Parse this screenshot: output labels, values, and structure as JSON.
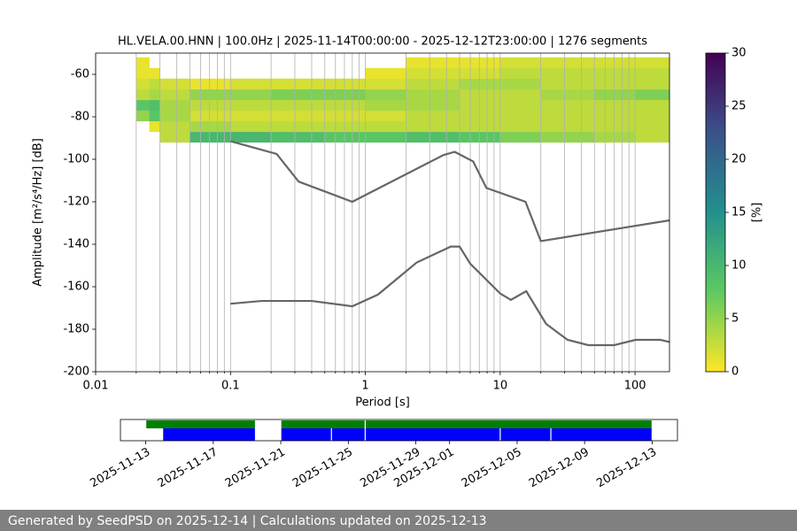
{
  "chart_data": [
    {
      "type": "heatmap",
      "title": "HL.VELA.00.HNN | 100.0Hz | 2025-11-14T00:00:00 - 2025-12-12T23:00:00 | 1276 segments",
      "xlabel": "Period [s]",
      "ylabel": "Amplitude [m²/s⁴/Hz] [dB]",
      "log_x": true,
      "xlim": [
        0.01,
        180
      ],
      "xticks": [
        0.01,
        0.1,
        1,
        10,
        100
      ],
      "xminorticks": [
        0.02,
        0.03,
        0.04,
        0.05,
        0.06,
        0.07,
        0.08,
        0.09,
        0.2,
        0.3,
        0.4,
        0.5,
        0.6,
        0.7,
        0.8,
        0.9,
        2,
        3,
        4,
        5,
        6,
        7,
        8,
        9,
        20,
        30,
        40,
        50,
        60,
        70,
        80,
        90
      ],
      "ylim": [
        -200,
        -50
      ],
      "yticks": [
        -200,
        -180,
        -160,
        -140,
        -120,
        -100,
        -80,
        -60
      ],
      "grid": "x",
      "heatmap": {
        "x_bins": [
          0.02,
          0.025,
          0.03,
          0.05,
          0.1,
          0.2,
          0.5,
          1,
          2,
          5,
          10,
          20,
          50,
          100,
          180
        ],
        "y_bins": [
          -92,
          -87,
          -82,
          -77,
          -72,
          -67,
          -62,
          -57,
          -52
        ],
        "values": [
          [
            null,
            null,
            3,
            10,
            10,
            9,
            8,
            8,
            9,
            8,
            6,
            5,
            4,
            3
          ],
          [
            null,
            1,
            3,
            4,
            3,
            3,
            3,
            3,
            3,
            3,
            3,
            3,
            3,
            3
          ],
          [
            5,
            8,
            4,
            2,
            2,
            2,
            2,
            2,
            3,
            3,
            3,
            3,
            3,
            3
          ],
          [
            8,
            9,
            4,
            3,
            3,
            3,
            3,
            4,
            4,
            3,
            3,
            3,
            3,
            3
          ],
          [
            3,
            4,
            3,
            5,
            5,
            6,
            6,
            5,
            4,
            3,
            3,
            4,
            5,
            6
          ],
          [
            2,
            3,
            2,
            1,
            2,
            2,
            2,
            2,
            3,
            4,
            4,
            3,
            3,
            3
          ],
          [
            1,
            1,
            null,
            null,
            null,
            null,
            null,
            1,
            2,
            2,
            3,
            3,
            3,
            3
          ],
          [
            1,
            null,
            null,
            null,
            null,
            null,
            null,
            null,
            1,
            1,
            2,
            2,
            2,
            2
          ]
        ]
      },
      "colormap": "viridis_r",
      "zlim": [
        0,
        30
      ],
      "zticks": [
        0,
        5,
        10,
        15,
        20,
        25,
        30
      ],
      "zlabel": "[%]",
      "series": [
        {
          "color": "#666666",
          "x": [
            0.1,
            0.22,
            0.32,
            0.8,
            3.8,
            4.6,
            6.3,
            7.9,
            15.4,
            20,
            180
          ],
          "values": [
            -91.5,
            -97.5,
            -110.5,
            -120,
            -98,
            -96.5,
            -101,
            -113.5,
            -120,
            -138.5,
            -128.75
          ]
        },
        {
          "color": "#666666",
          "x": [
            0.1,
            0.17,
            0.4,
            0.8,
            1.24,
            2.4,
            4.3,
            5,
            6,
            10,
            12,
            15.6,
            21.9,
            31.6,
            45,
            70,
            101,
            154,
            180
          ],
          "values": [
            -168,
            -166.7,
            -166.7,
            -169.2,
            -163.7,
            -148.6,
            -141.1,
            -141.1,
            -149.2,
            -163.2,
            -166.2,
            -162.1,
            -177.5,
            -185,
            -187.5,
            -187.5,
            -185,
            -185,
            -186
          ]
        }
      ]
    },
    {
      "type": "timeline",
      "xlim": [
        "2025-11-11T12:00",
        "2025-12-14T12:00"
      ],
      "xticks": [
        "2025-11-13",
        "2025-11-17",
        "2025-11-21",
        "2025-11-25",
        "2025-11-29",
        "2025-12-01",
        "2025-12-05",
        "2025-12-09",
        "2025-12-13"
      ],
      "series": [
        {
          "color": "#008000",
          "segments": [
            [
              "2025-11-13",
              "2025-11-19T12:00"
            ],
            [
              "2025-11-21",
              "2025-11-26"
            ],
            [
              "2025-11-26",
              "2025-12-13"
            ]
          ]
        },
        {
          "color": "#0000ff",
          "segments": [
            [
              "2025-11-14",
              "2025-11-19T12:00"
            ],
            [
              "2025-11-21",
              "2025-11-24"
            ],
            [
              "2025-11-24",
              "2025-11-26"
            ],
            [
              "2025-11-26",
              "2025-12-04"
            ],
            [
              "2025-12-04",
              "2025-12-07"
            ],
            [
              "2025-12-07",
              "2025-12-13"
            ]
          ]
        }
      ]
    }
  ],
  "footer": {
    "text": "Generated by SeedPSD on 2025-12-14 | Calculations updated on 2025-12-13"
  }
}
